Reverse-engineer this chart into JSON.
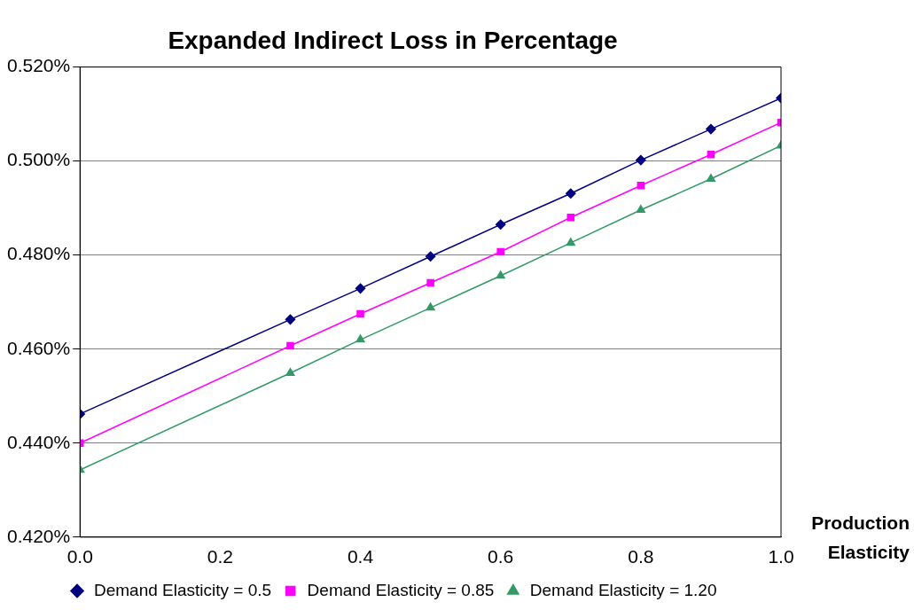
{
  "chart_data": {
    "type": "line",
    "title": "Expanded Indirect Loss in Percentage",
    "xlabel": "Production Elasticity",
    "x": [
      0,
      0.3,
      0.4,
      0.5,
      0.6,
      0.7,
      0.8,
      0.9,
      1.0
    ],
    "series": [
      {
        "name": "Demand Elasticity = 0.5",
        "color": "#000080",
        "marker": "diamond",
        "values": [
          0.4462,
          0.4663,
          0.4729,
          0.4797,
          0.4865,
          0.4931,
          0.5002,
          0.5068,
          0.5134
        ]
      },
      {
        "name": "Demand Elasticity = 0.85",
        "color": "#ff00ff",
        "marker": "square",
        "values": [
          0.44,
          0.4607,
          0.4675,
          0.4741,
          0.4807,
          0.488,
          0.4948,
          0.5014,
          0.5082
        ]
      },
      {
        "name": "Demand Elasticity = 1.20",
        "color": "#339966",
        "marker": "triangle",
        "values": [
          0.4343,
          0.4549,
          0.462,
          0.4688,
          0.4756,
          0.4826,
          0.4896,
          0.4962,
          0.5033
        ]
      }
    ],
    "xlim": [
      0,
      1
    ],
    "xticks": [
      {
        "value": 0,
        "label": "0.0"
      },
      {
        "value": 0.2,
        "label": "0.2"
      },
      {
        "value": 0.4,
        "label": "0.4"
      },
      {
        "value": 0.6,
        "label": "0.6"
      },
      {
        "value": 0.8,
        "label": "0.8"
      },
      {
        "value": 1,
        "label": "1.0"
      }
    ],
    "ylim": [
      0.42,
      0.52
    ],
    "yticks": [
      {
        "value": 0.42,
        "label": "0.420%"
      },
      {
        "value": 0.44,
        "label": "0.440%"
      },
      {
        "value": 0.46,
        "label": "0.460%"
      },
      {
        "value": 0.48,
        "label": "0.480%"
      },
      {
        "value": 0.5,
        "label": "0.500%"
      },
      {
        "value": 0.52,
        "label": "0.520%"
      }
    ],
    "grid": "y",
    "legend": "bottom",
    "line_style": "solid"
  }
}
